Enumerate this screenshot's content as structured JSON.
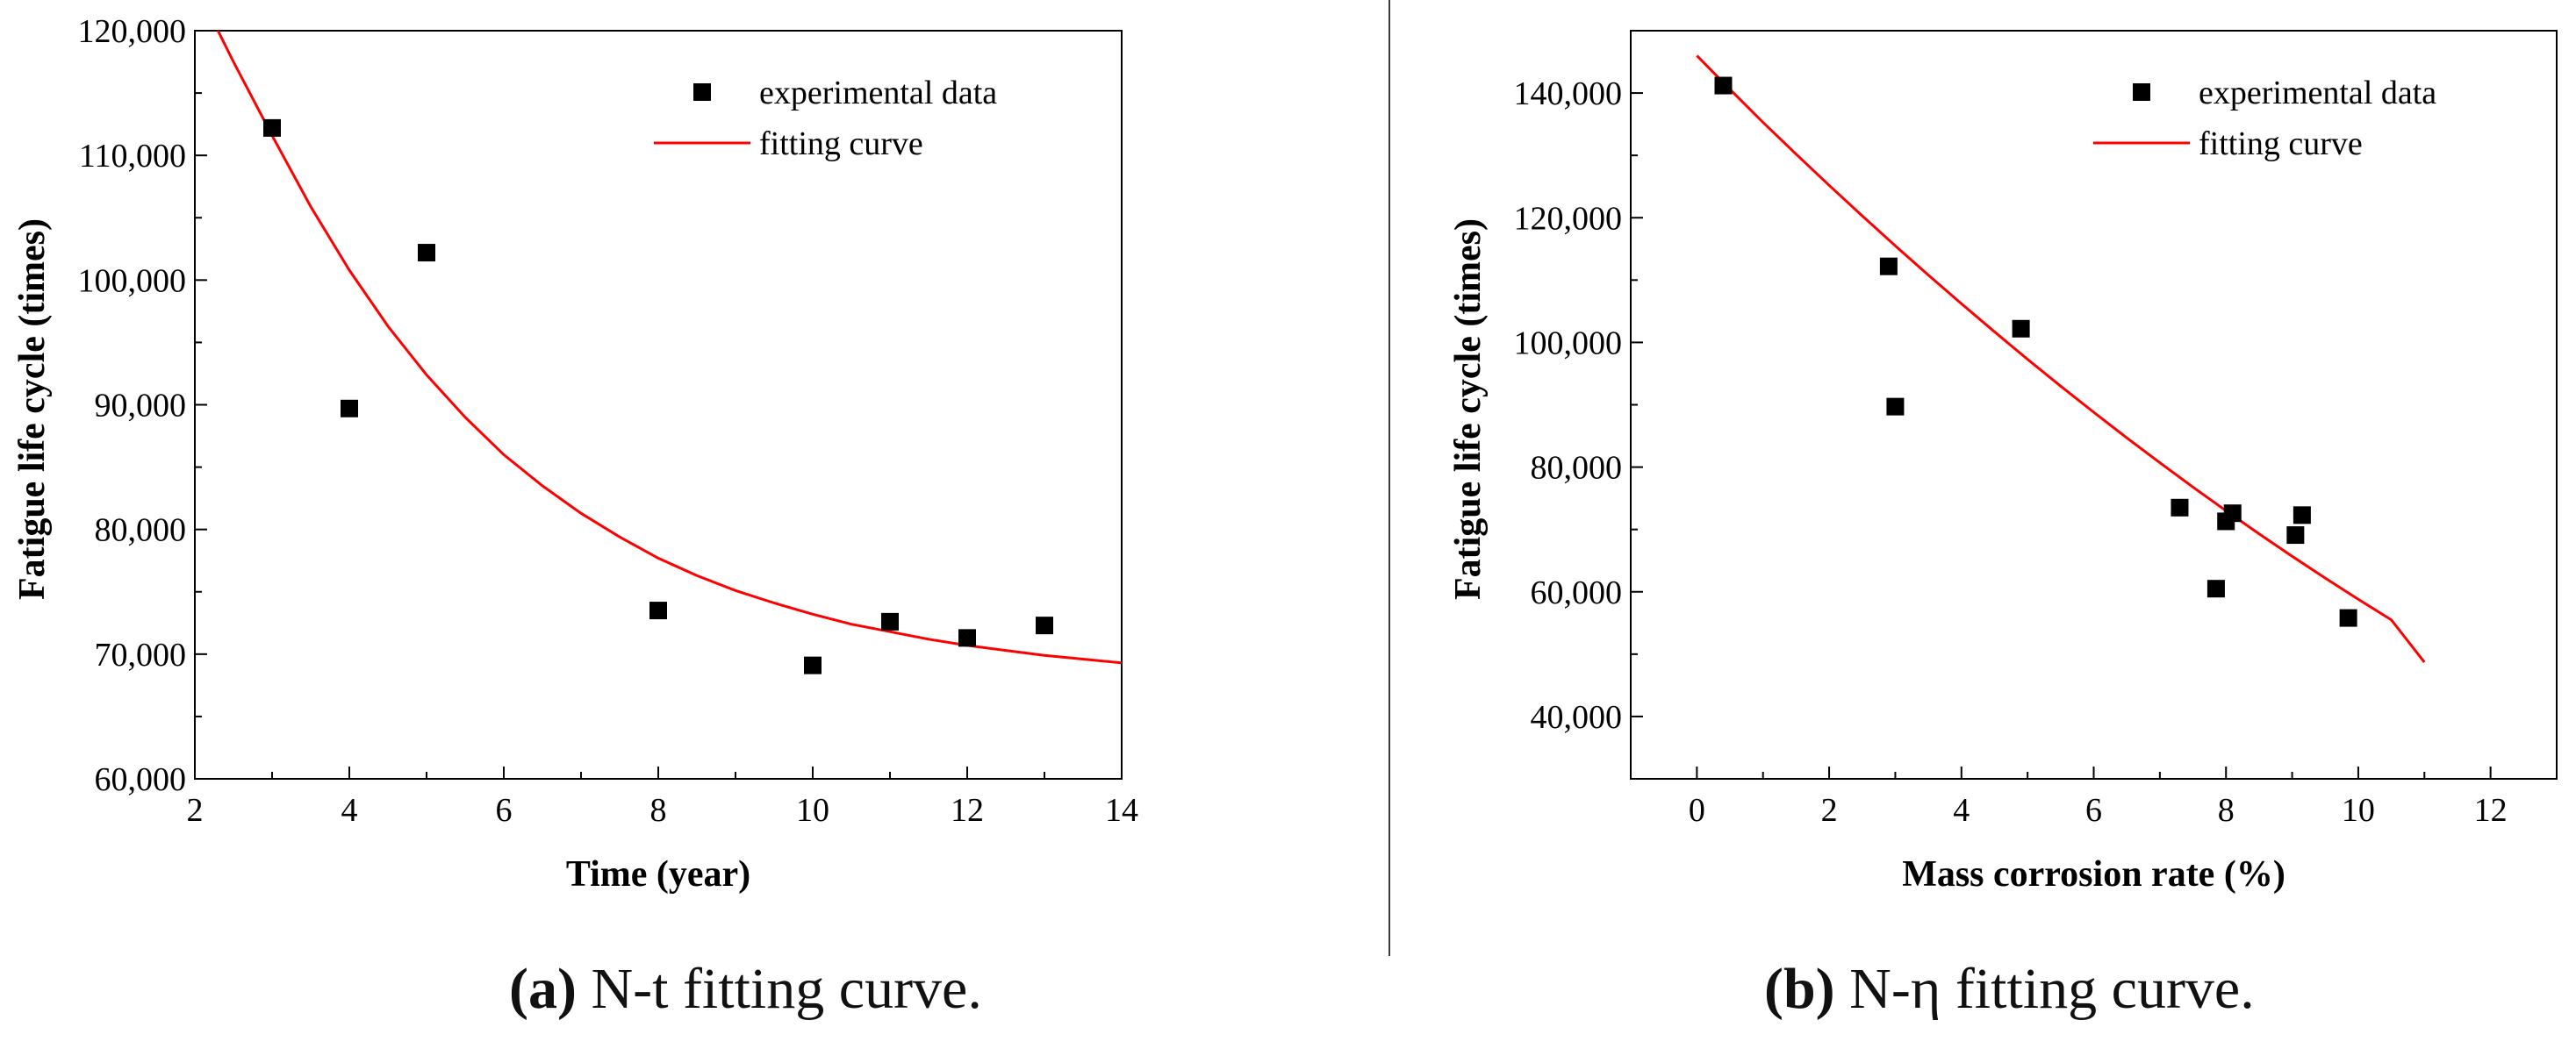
{
  "colors": {
    "fit": "#ff0000",
    "marker": "#000000",
    "axis": "#000000"
  },
  "chart_data": [
    {
      "type": "scatter",
      "title": "",
      "xlabel": "Time (year)",
      "ylabel": "Fatigue life cycle (times)",
      "xlim": [
        2,
        14
      ],
      "ylim": [
        60000,
        120000
      ],
      "xticks": [
        2,
        4,
        6,
        8,
        10,
        12,
        14
      ],
      "yticks": [
        60000,
        70000,
        80000,
        90000,
        100000,
        110000,
        120000
      ],
      "ytick_labels": [
        "60,000",
        "70,000",
        "80,000",
        "90,000",
        "100,000",
        "110,000",
        "120,000"
      ],
      "legend": {
        "position": "top-right",
        "markers_label": "experimental data",
        "fit_label": "fitting curve"
      },
      "series": [
        {
          "name": "experimental data",
          "kind": "markers",
          "x": [
            3,
            4,
            5,
            8,
            10,
            11,
            12,
            13
          ],
          "y": [
            112200,
            89700,
            102200,
            73500,
            69100,
            72600,
            71300,
            72300
          ]
        },
        {
          "name": "fitting curve",
          "kind": "line",
          "x": [
            2.3,
            2.5,
            3,
            3.5,
            4,
            4.5,
            5,
            5.5,
            6,
            6.5,
            7,
            7.5,
            8,
            8.5,
            9,
            9.5,
            10,
            10.5,
            11,
            11.5,
            12,
            12.5,
            13,
            13.5,
            14
          ],
          "y": [
            120000,
            117500,
            111600,
            105900,
            100800,
            96300,
            92400,
            89000,
            86000,
            83500,
            81300,
            79400,
            77700,
            76300,
            75100,
            74100,
            73200,
            72400,
            71800,
            71200,
            70700,
            70300,
            69900,
            69600,
            69300
          ]
        }
      ],
      "caption_label": "(a)",
      "caption_text": " N-t fitting curve."
    },
    {
      "type": "scatter",
      "title": "",
      "xlabel": "Mass corrosion rate (%)",
      "ylabel": "Fatigue life cycle (times)",
      "xlim": [
        -1,
        13
      ],
      "ylim": [
        30000,
        150000
      ],
      "xticks": [
        0,
        2,
        4,
        6,
        8,
        10,
        12
      ],
      "yticks": [
        40000,
        60000,
        80000,
        100000,
        120000,
        140000
      ],
      "ytick_labels": [
        "40,000",
        "60,000",
        "80,000",
        "100,000",
        "120,000",
        "140,000"
      ],
      "legend": {
        "position": "top-right",
        "markers_label": "experimental data",
        "fit_label": "fitting curve"
      },
      "series": [
        {
          "name": "experimental data",
          "kind": "markers",
          "x": [
            0.4,
            2.9,
            3.0,
            4.9,
            7.3,
            7.85,
            8.0,
            8.1,
            9.05,
            9.15,
            9.85
          ],
          "y": [
            141200,
            112200,
            89700,
            102200,
            73500,
            60500,
            71300,
            72600,
            69100,
            72300,
            55800
          ]
        },
        {
          "name": "fitting curve",
          "kind": "line",
          "x": [
            0,
            0.5,
            1,
            1.5,
            2,
            2.5,
            3,
            3.5,
            4,
            4.5,
            5,
            5.5,
            6,
            6.5,
            7,
            7.5,
            8,
            8.5,
            9,
            9.5,
            10,
            10.5,
            11
          ],
          "y": [
            146000,
            140600,
            135300,
            130200,
            125200,
            120300,
            115500,
            110800,
            106200,
            101700,
            97300,
            93000,
            88800,
            84700,
            80700,
            76800,
            73000,
            69300,
            65700,
            62200,
            58800,
            55500,
            48700
          ]
        }
      ],
      "caption_label": "(b)",
      "caption_text": " N-η fitting curve."
    }
  ]
}
